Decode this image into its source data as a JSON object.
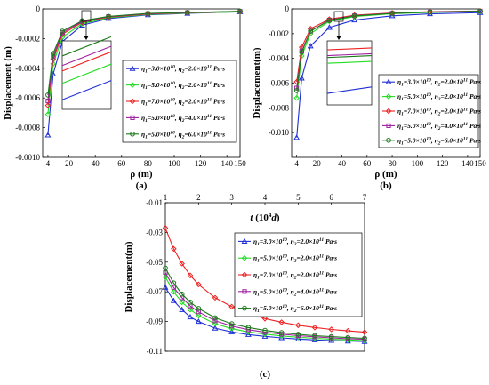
{
  "chart_data": [
    {
      "type": "line",
      "panel_label": "(a)",
      "xlabel": "ρ (m)",
      "ylabel": "Displacement (m)",
      "xlim": [
        0,
        150
      ],
      "ylim": [
        -0.001,
        0
      ],
      "xticks": [
        "4",
        "20",
        "40",
        "60",
        "80",
        "100",
        "120",
        "140",
        "150"
      ],
      "yticks": [
        "0",
        "-0.0002",
        "-0.0004",
        "-0.0006",
        "-0.0008",
        "-0.0010"
      ],
      "inset": true,
      "x": [
        4,
        8,
        15,
        30,
        50,
        80,
        110,
        150
      ],
      "series": [
        {
          "name": "η1=3.0×10^10, η2=2.0×10^11 Pa·s",
          "color": "#1f2fd6",
          "marker": "triangle",
          "values": [
            -0.00085,
            -0.00044,
            -0.00022,
            -0.00011,
            -6.5e-05,
            -4e-05,
            -3e-05,
            -2e-05
          ]
        },
        {
          "name": "η1=5.0×10^10, η2=2.0×10^11 Pa·s",
          "color": "#22dd22",
          "marker": "diamond",
          "values": [
            -0.00071,
            -0.00037,
            -0.00019,
            -0.0001,
            -6e-05,
            -3.7e-05,
            -2.8e-05,
            -2e-05
          ]
        },
        {
          "name": "η1=7.0×10^10, η2=2.0×10^11 Pa·s",
          "color": "#ee2222",
          "marker": "diamond",
          "values": [
            -0.00065,
            -0.00034,
            -0.00017,
            -9e-05,
            -5.5e-05,
            -3.4e-05,
            -2.6e-05,
            -1.8e-05
          ]
        },
        {
          "name": "η1=5.0×10^10, η2=4.0×10^11 Pa·s",
          "color": "#a020a0",
          "marker": "square",
          "values": [
            -0.00062,
            -0.00032,
            -0.00016,
            -8.5e-05,
            -5.2e-05,
            -3.2e-05,
            -2.5e-05,
            -1.7e-05
          ]
        },
        {
          "name": "η1=5.0×10^10, η2=6.0×10^11 Pa·s",
          "color": "#1a7a1a",
          "marker": "circle",
          "values": [
            -0.00058,
            -0.0003,
            -0.00015,
            -8e-05,
            -5e-05,
            -3e-05,
            -2.4e-05,
            -1.6e-05
          ]
        }
      ]
    },
    {
      "type": "line",
      "panel_label": "(b)",
      "xlabel": "ρ (m)",
      "ylabel": "Displacement(m)",
      "xlim": [
        0,
        150
      ],
      "ylim": [
        -0.012,
        0
      ],
      "xticks": [
        "4",
        "20",
        "40",
        "60",
        "80",
        "100",
        "120",
        "140",
        "150"
      ],
      "yticks": [
        "0",
        "-0.002",
        "-0.004",
        "-0.006",
        "-0.008",
        "-0.010"
      ],
      "inset": true,
      "x": [
        4,
        8,
        15,
        30,
        50,
        80,
        110,
        150
      ],
      "series": [
        {
          "name": "η1=3.0×10^10, η2=2.0×10^11 Pa·s",
          "color": "#1f2fd6",
          "marker": "triangle",
          "values": [
            -0.0104,
            -0.0056,
            -0.003,
            -0.0015,
            -0.0009,
            -0.00056,
            -0.0004,
            -0.0003
          ]
        },
        {
          "name": "η1=5.0×10^10, η2=2.0×10^11 Pa·s",
          "color": "#22dd22",
          "marker": "diamond",
          "values": [
            -0.0072,
            -0.0038,
            -0.002,
            -0.001,
            -0.00062,
            -0.00039,
            -0.00028,
            -0.0002
          ]
        },
        {
          "name": "η1=7.0×10^10, η2=2.0×10^11 Pa·s",
          "color": "#ee2222",
          "marker": "diamond",
          "values": [
            -0.0059,
            -0.0031,
            -0.0016,
            -0.00083,
            -0.0005,
            -0.00032,
            -0.00023,
            -0.00017
          ]
        },
        {
          "name": "η1=5.0×10^10, η2=4.0×10^11 Pa·s",
          "color": "#a020a0",
          "marker": "square",
          "values": [
            -0.0064,
            -0.0034,
            -0.0018,
            -0.0009,
            -0.00055,
            -0.00035,
            -0.00025,
            -0.00018
          ]
        },
        {
          "name": "η1=5.0×10^10, η2=6.0×10^11 Pa·s",
          "color": "#1a7a1a",
          "marker": "circle",
          "values": [
            -0.0066,
            -0.0035,
            -0.0018,
            -0.00093,
            -0.00057,
            -0.00036,
            -0.00026,
            -0.00019
          ]
        }
      ]
    },
    {
      "type": "line",
      "panel_label": "(c)",
      "xlabel": "t (10^4 d)",
      "ylabel": "Displacement(m)",
      "xlim": [
        1,
        7
      ],
      "ylim": [
        -0.11,
        -0.01
      ],
      "xticks": [
        "1",
        "2",
        "3",
        "4",
        "5",
        "6",
        "7"
      ],
      "yticks": [
        "-0.01",
        "-0.03",
        "-0.05",
        "-0.07",
        "-0.09",
        "-0.11"
      ],
      "x": [
        1,
        1.25,
        1.5,
        1.75,
        2,
        2.5,
        3,
        3.5,
        4,
        4.5,
        5,
        5.5,
        6,
        6.5,
        7
      ],
      "series": [
        {
          "name": "η1=3.0×10^10, η2=2.0×10^11 Pa·s",
          "color": "#1f2fd6",
          "marker": "triangle",
          "values": [
            -0.067,
            -0.076,
            -0.082,
            -0.087,
            -0.09,
            -0.0945,
            -0.097,
            -0.0988,
            -0.1,
            -0.101,
            -0.1018,
            -0.1024,
            -0.1028,
            -0.1032,
            -0.1035
          ]
        },
        {
          "name": "η1=5.0×10^10, η2=2.0×10^11 Pa·s",
          "color": "#22dd22",
          "marker": "diamond",
          "values": [
            -0.06,
            -0.07,
            -0.077,
            -0.082,
            -0.086,
            -0.0915,
            -0.0948,
            -0.097,
            -0.0985,
            -0.0997,
            -0.1006,
            -0.1013,
            -0.1019,
            -0.1024,
            -0.1028
          ]
        },
        {
          "name": "η1=7.0×10^10, η2=2.0×10^11 Pa·s",
          "color": "#ee2222",
          "marker": "diamond",
          "values": [
            -0.027,
            -0.041,
            -0.051,
            -0.059,
            -0.065,
            -0.074,
            -0.08,
            -0.0845,
            -0.088,
            -0.0905,
            -0.0925,
            -0.094,
            -0.0953,
            -0.0963,
            -0.0972
          ]
        },
        {
          "name": "η1=5.0×10^10, η2=4.0×10^11 Pa·s",
          "color": "#a020a0",
          "marker": "square",
          "values": [
            -0.057,
            -0.067,
            -0.074,
            -0.0795,
            -0.0835,
            -0.0895,
            -0.093,
            -0.0955,
            -0.0972,
            -0.0985,
            -0.0995,
            -0.1003,
            -0.101,
            -0.1016,
            -0.102
          ]
        },
        {
          "name": "η1=5.0×10^10, η2=6.0×10^11 Pa·s",
          "color": "#1a7a1a",
          "marker": "circle",
          "values": [
            -0.054,
            -0.064,
            -0.0715,
            -0.077,
            -0.0812,
            -0.0875,
            -0.0915,
            -0.094,
            -0.096,
            -0.0975,
            -0.0986,
            -0.0995,
            -0.1002,
            -0.1008,
            -0.1013
          ]
        }
      ]
    }
  ]
}
